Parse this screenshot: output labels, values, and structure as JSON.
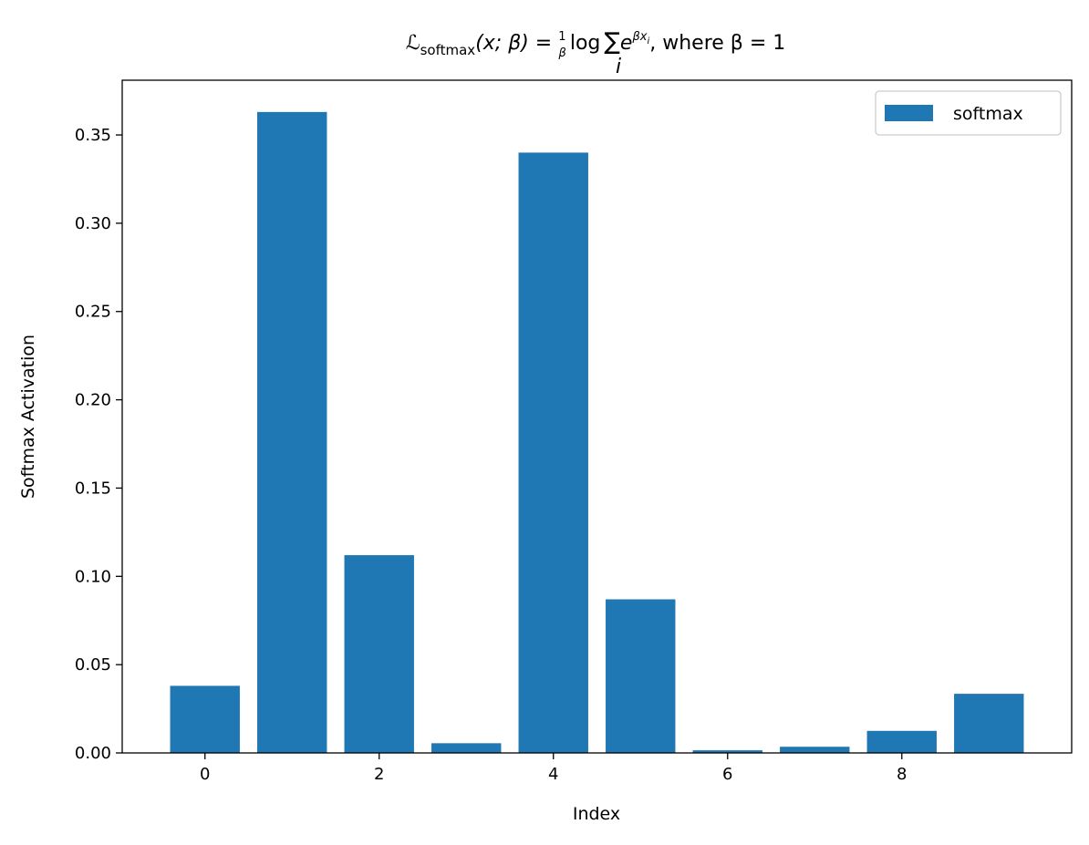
{
  "chart_data": {
    "type": "bar",
    "title": {
      "loss_symbol": "ℒ",
      "loss_subscript": "softmax",
      "args": "(x; β) = ",
      "frac_num": "1",
      "frac_den": "β",
      "log_text": "log",
      "sum_symbol": "∑",
      "sum_index": "i",
      "exp_base": "e",
      "exp_power": "βx",
      "exp_power_sub": "i",
      "condition": ", where β = 1"
    },
    "xlabel": "Index",
    "ylabel": "Softmax Activation",
    "x": [
      0,
      1,
      2,
      3,
      4,
      5,
      6,
      7,
      8,
      9
    ],
    "series": [
      {
        "name": "softmax",
        "color": "#1f77b4",
        "values": [
          0.038,
          0.363,
          0.112,
          0.0055,
          0.34,
          0.087,
          0.0015,
          0.0035,
          0.0125,
          0.0335
        ]
      }
    ],
    "xlim": [
      -0.95,
      9.95
    ],
    "ylim": [
      0,
      0.381
    ],
    "xticks": [
      0,
      2,
      4,
      6,
      8
    ],
    "xtick_labels": [
      "0",
      "2",
      "4",
      "6",
      "8"
    ],
    "yticks": [
      0,
      0.05,
      0.1,
      0.15,
      0.2,
      0.25,
      0.3,
      0.35
    ],
    "ytick_labels": [
      "0.00",
      "0.05",
      "0.10",
      "0.15",
      "0.20",
      "0.25",
      "0.30",
      "0.35"
    ],
    "grid": false,
    "legend_position": "top-right"
  }
}
